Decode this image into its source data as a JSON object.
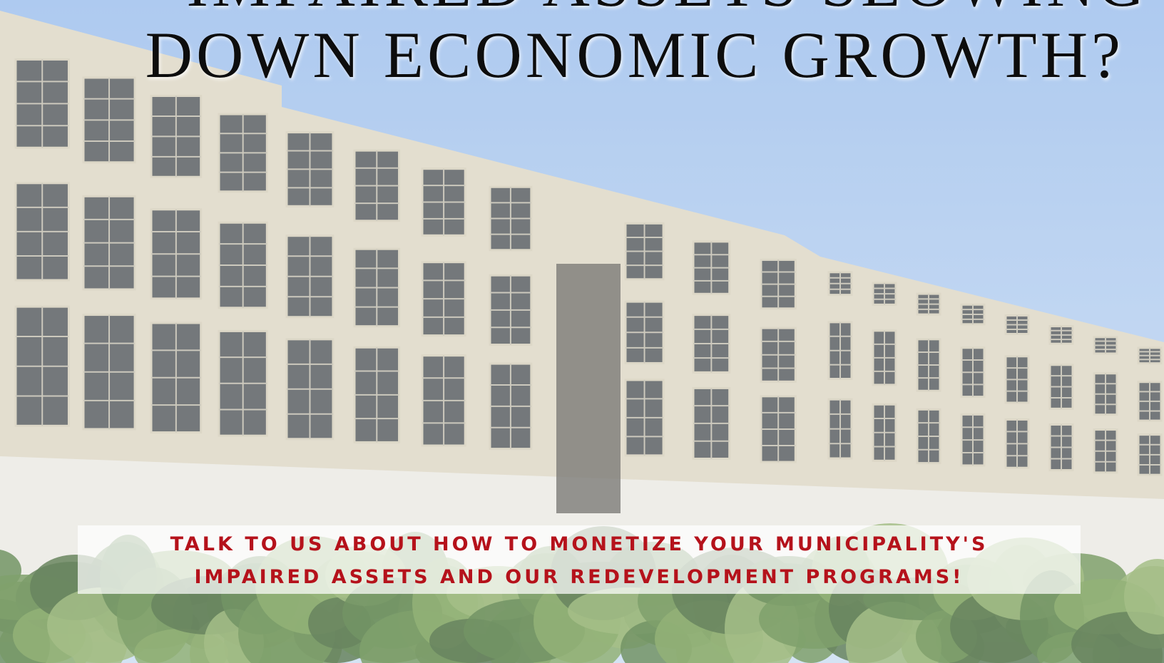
{
  "headline": {
    "lines": [
      "IMPAIRED ASSETS SLOWING",
      "DOWN ECONOMIC GROWTH?"
    ]
  },
  "callout": {
    "lines": [
      "TALK TO US ABOUT HOW TO MONETIZE YOUR MUNICIPALITY'S",
      "IMPAIRED ASSETS AND OUR REDEVELOPMENT PROGRAMS!"
    ]
  }
}
